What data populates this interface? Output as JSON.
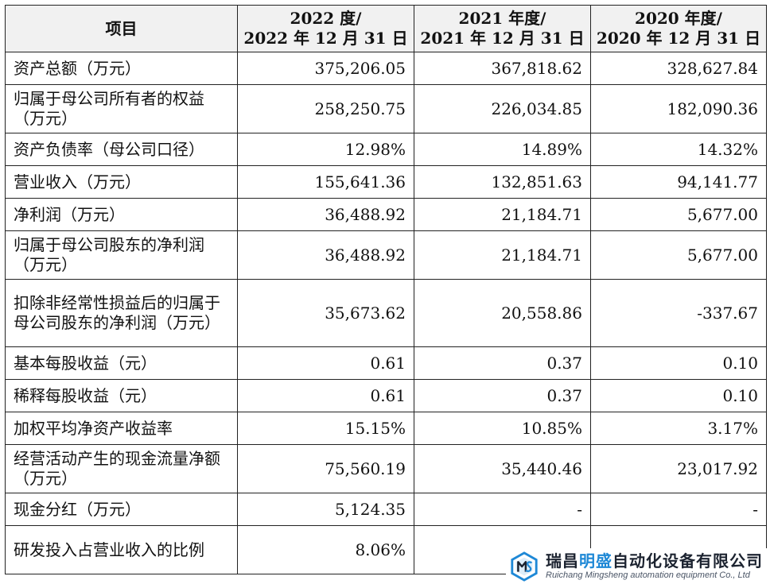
{
  "table": {
    "headers": [
      {
        "line1": "项目",
        "line2": ""
      },
      {
        "line1": "2022 度/",
        "line2": "2022 年 12 月 31 日"
      },
      {
        "line1": "2021 年度/",
        "line2": "2021 年 12 月 31 日"
      },
      {
        "line1": "2020 年度/",
        "line2": "2020 年 12 月 31 日"
      }
    ],
    "rows": [
      {
        "label": "资产总额（万元）",
        "v2022": "375,206.05",
        "v2021": "367,818.62",
        "v2020": "328,627.84"
      },
      {
        "label": "归属于母公司所有者的权益（万元）",
        "v2022": "258,250.75",
        "v2021": "226,034.85",
        "v2020": "182,090.36"
      },
      {
        "label": "资产负债率（母公司口径）",
        "v2022": "12.98%",
        "v2021": "14.89%",
        "v2020": "14.32%"
      },
      {
        "label": "营业收入（万元）",
        "v2022": "155,641.36",
        "v2021": "132,851.63",
        "v2020": "94,141.77"
      },
      {
        "label": "净利润（万元）",
        "v2022": "36,488.92",
        "v2021": "21,184.71",
        "v2020": "5,677.00"
      },
      {
        "label": "归属于母公司股东的净利润（万元）",
        "v2022": "36,488.92",
        "v2021": "21,184.71",
        "v2020": "5,677.00"
      },
      {
        "label": "扣除非经常性损益后的归属于母公司股东的净利润（万元）",
        "v2022": "35,673.62",
        "v2021": "20,558.86",
        "v2020": "-337.67"
      },
      {
        "label": "基本每股收益（元）",
        "v2022": "0.61",
        "v2021": "0.37",
        "v2020": "0.10"
      },
      {
        "label": "稀释每股收益（元）",
        "v2022": "0.61",
        "v2021": "0.37",
        "v2020": "0.10"
      },
      {
        "label": "加权平均净资产收益率",
        "v2022": "15.15%",
        "v2021": "10.85%",
        "v2020": "3.17%"
      },
      {
        "label": "经营活动产生的现金流量净额（万元）",
        "v2022": "75,560.19",
        "v2021": "35,440.46",
        "v2020": "23,017.92"
      },
      {
        "label": "现金分红（万元）",
        "v2022": "5,124.35",
        "v2021": "-",
        "v2020": "-"
      },
      {
        "label": "研发投入占营业收入的比例",
        "v2022": "8.06%",
        "v2021": "",
        "v2020": ""
      }
    ]
  },
  "watermark": {
    "name_part1": "瑞昌",
    "name_accent": "明盛",
    "name_part2": "自动化设备有限公司",
    "english": "Ruichang Mingsheng automation equipment Co., Ltd",
    "accent_color": "#1e88d6",
    "logo_icon": "ms-hexagon-logo-icon"
  }
}
